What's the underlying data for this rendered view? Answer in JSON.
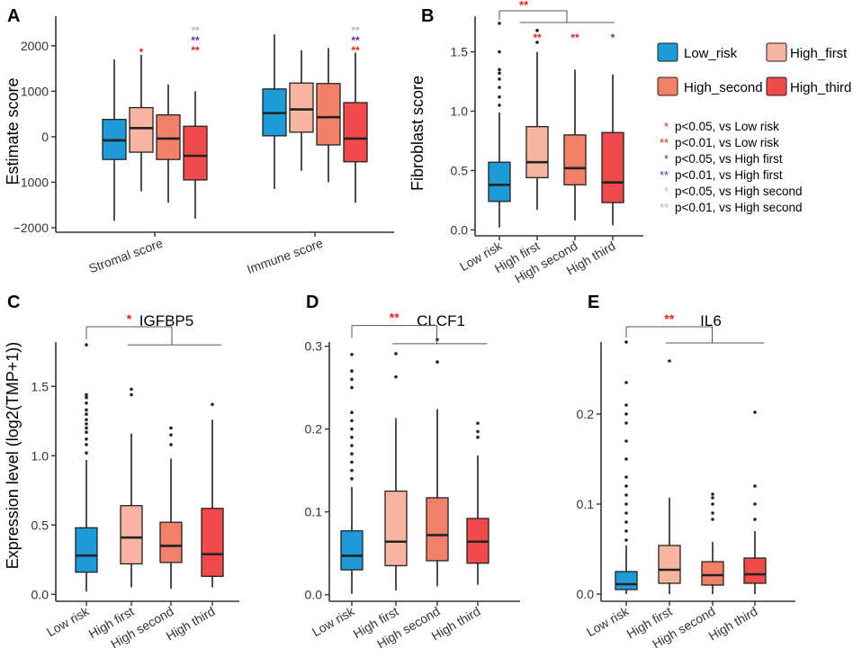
{
  "colors": {
    "low_risk": "#1e9ad6",
    "high_first": "#f7b5a1",
    "high_second": "#f08068",
    "high_third": "#f04a4a",
    "sig_red": "#e8201c",
    "sig_purple": "#6a2a9a",
    "sig_lavender": "#c8a8d8",
    "axis": "#333333"
  },
  "legend": {
    "items": [
      {
        "key": "low_risk",
        "label": "Low_risk"
      },
      {
        "key": "high_first",
        "label": "High_first"
      },
      {
        "key": "high_second",
        "label": "High_second"
      },
      {
        "key": "high_third",
        "label": "High_third"
      }
    ],
    "notes": [
      {
        "marker": "*",
        "color": "sig_red",
        "text": "p<0.05, vs Low risk"
      },
      {
        "marker": "**",
        "color": "sig_red",
        "text": "p<0.01, vs Low risk"
      },
      {
        "marker": "*",
        "color": "sig_purple",
        "text": "p<0.05, vs High first"
      },
      {
        "marker": "**",
        "color": "sig_purple",
        "text": "p<0.01, vs High first"
      },
      {
        "marker": "*",
        "color": "sig_lavender",
        "text": "p<0.05, vs High second"
      },
      {
        "marker": "**",
        "color": "sig_lavender",
        "text": "p<0.01, vs High second"
      }
    ]
  },
  "chart_data": [
    {
      "panel": "A",
      "type": "box",
      "title": "",
      "ylabel": "Estimate score",
      "ylim": [
        -2100,
        2650
      ],
      "yticks": [
        -2000,
        -1000,
        0,
        1000,
        2000
      ],
      "ytick_labels": [
        "−2000",
        "−1000",
        "0",
        "1000",
        "2000"
      ],
      "group_labels": [
        "Stromal score",
        "Immune score"
      ],
      "groups": [
        {
          "name": "Stromal score",
          "boxes": [
            {
              "series": "low_risk",
              "min": -1850,
              "q1": -500,
              "median": -80,
              "q3": 380,
              "max": 1700,
              "outliers": []
            },
            {
              "series": "high_first",
              "min": -1200,
              "q1": -340,
              "median": 190,
              "q3": 640,
              "max": 1800,
              "outliers": []
            },
            {
              "series": "high_second",
              "min": -1450,
              "q1": -500,
              "median": -40,
              "q3": 480,
              "max": 1150,
              "outliers": []
            },
            {
              "series": "high_third",
              "min": -1800,
              "q1": -950,
              "median": -420,
              "q3": 230,
              "max": 1000,
              "outliers": []
            }
          ],
          "sig": [
            {
              "box": 1,
              "rows": [
                {
                  "text": "*",
                  "color": "sig_red"
                }
              ]
            },
            {
              "box": 3,
              "rows": [
                {
                  "text": "**",
                  "color": "sig_lavender"
                },
                {
                  "text": "**",
                  "color": "sig_purple"
                },
                {
                  "text": "**",
                  "color": "sig_red"
                }
              ]
            }
          ]
        },
        {
          "name": "Immune score",
          "boxes": [
            {
              "series": "low_risk",
              "min": -1150,
              "q1": 20,
              "median": 520,
              "q3": 1050,
              "max": 2250,
              "outliers": []
            },
            {
              "series": "high_first",
              "min": -750,
              "q1": 100,
              "median": 600,
              "q3": 1180,
              "max": 1900,
              "outliers": []
            },
            {
              "series": "high_second",
              "min": -1000,
              "q1": -180,
              "median": 430,
              "q3": 1170,
              "max": 1950,
              "outliers": []
            },
            {
              "series": "high_third",
              "min": -1450,
              "q1": -550,
              "median": -40,
              "q3": 750,
              "max": 1850,
              "outliers": []
            }
          ],
          "sig": [
            {
              "box": 3,
              "rows": [
                {
                  "text": "**",
                  "color": "sig_lavender"
                },
                {
                  "text": "**",
                  "color": "sig_purple"
                },
                {
                  "text": "**",
                  "color": "sig_red"
                }
              ]
            }
          ]
        }
      ]
    },
    {
      "panel": "B",
      "type": "box",
      "title": "",
      "ylabel": "Fibroblast score",
      "ylim": [
        -0.05,
        1.8
      ],
      "yticks": [
        0.0,
        0.5,
        1.0,
        1.5
      ],
      "ytick_labels": [
        "0.0",
        "0.5",
        "1.0",
        "1.5"
      ],
      "categories": [
        "Low risk",
        "High first",
        "High second",
        "High third"
      ],
      "boxes": [
        {
          "series": "low_risk",
          "min": 0.02,
          "q1": 0.24,
          "median": 0.38,
          "q3": 0.57,
          "max": 0.99,
          "outliers": [
            1.05,
            1.12,
            1.2,
            1.27,
            1.32,
            1.35,
            1.5,
            1.74
          ]
        },
        {
          "series": "high_first",
          "min": 0.17,
          "q1": 0.44,
          "median": 0.57,
          "q3": 0.87,
          "max": 1.5,
          "outliers": [
            1.58,
            1.68
          ]
        },
        {
          "series": "high_second",
          "min": 0.08,
          "q1": 0.38,
          "median": 0.52,
          "q3": 0.8,
          "max": 1.35,
          "outliers": []
        },
        {
          "series": "high_third",
          "min": 0.04,
          "q1": 0.23,
          "median": 0.4,
          "q3": 0.82,
          "max": 1.31,
          "outliers": []
        }
      ],
      "sig": [
        {
          "box": 1,
          "rows": [
            {
              "text": "**",
              "color": "sig_red"
            }
          ]
        },
        {
          "box": 2,
          "rows": [
            {
              "text": "**",
              "color": "sig_red"
            }
          ]
        },
        {
          "box": 3,
          "rows": [
            {
              "text": "*",
              "color": "sig_purple"
            }
          ]
        }
      ],
      "bracket": {
        "y": 1.89,
        "drop_y": 1.8,
        "right_y": 1.8,
        "from": 0,
        "to": 3,
        "label": "**"
      }
    },
    {
      "panel": "C",
      "type": "box",
      "title": "IGFBP5",
      "ylabel": "Expression level (log2(TMP+1))",
      "ylim": [
        -0.05,
        1.82
      ],
      "yticks": [
        0.0,
        0.5,
        1.0,
        1.5
      ],
      "ytick_labels": [
        "0.0",
        "0.5",
        "1.0",
        "1.5"
      ],
      "categories": [
        "Low risk",
        "High first",
        "High second",
        "High third"
      ],
      "boxes": [
        {
          "series": "low_risk",
          "min": 0.02,
          "q1": 0.16,
          "median": 0.28,
          "q3": 0.48,
          "max": 0.97,
          "outliers": [
            1.02,
            1.08,
            1.12,
            1.17,
            1.2,
            1.23,
            1.26,
            1.3,
            1.33,
            1.38,
            1.42,
            1.44,
            1.8
          ]
        },
        {
          "series": "high_first",
          "min": 0.05,
          "q1": 0.22,
          "median": 0.41,
          "q3": 0.64,
          "max": 1.16,
          "outliers": [
            1.44,
            1.48
          ]
        },
        {
          "series": "high_second",
          "min": 0.04,
          "q1": 0.23,
          "median": 0.35,
          "q3": 0.52,
          "max": 0.98,
          "outliers": [
            1.08,
            1.15,
            1.2
          ]
        },
        {
          "series": "high_third",
          "min": 0.05,
          "q1": 0.13,
          "median": 0.29,
          "q3": 0.62,
          "max": 1.26,
          "outliers": [
            1.37
          ]
        }
      ],
      "sig": [],
      "bracket": {
        "y": 1.93,
        "drop_y": 1.84,
        "right_y": 1.8,
        "from": 0,
        "to": 3,
        "label": "*"
      }
    },
    {
      "panel": "D",
      "type": "box",
      "title": "CLCF1",
      "ylabel": "",
      "ylim": [
        -0.008,
        0.305
      ],
      "yticks": [
        0.0,
        0.1,
        0.2,
        0.3
      ],
      "ytick_labels": [
        "0.0",
        "0.1",
        "0.2",
        "0.3"
      ],
      "categories": [
        "Low risk",
        "High first",
        "High second",
        "High third"
      ],
      "boxes": [
        {
          "series": "low_risk",
          "min": 0.001,
          "q1": 0.03,
          "median": 0.047,
          "q3": 0.077,
          "max": 0.13,
          "outliers": [
            0.14,
            0.15,
            0.16,
            0.17,
            0.18,
            0.19,
            0.2,
            0.21,
            0.22,
            0.25,
            0.26,
            0.27,
            0.29
          ]
        },
        {
          "series": "high_first",
          "min": 0.005,
          "q1": 0.035,
          "median": 0.064,
          "q3": 0.125,
          "max": 0.213,
          "outliers": [
            0.263,
            0.291
          ]
        },
        {
          "series": "high_second",
          "min": 0.01,
          "q1": 0.041,
          "median": 0.072,
          "q3": 0.117,
          "max": 0.224,
          "outliers": [
            0.281,
            0.308
          ]
        },
        {
          "series": "high_third",
          "min": 0.012,
          "q1": 0.038,
          "median": 0.064,
          "q3": 0.092,
          "max": 0.168,
          "outliers": [
            0.19,
            0.197,
            0.207
          ]
        }
      ],
      "sig": [],
      "bracket": {
        "y": 0.325,
        "drop_y": 0.31,
        "right_y": 0.303,
        "from": 0,
        "to": 3,
        "label": "**"
      }
    },
    {
      "panel": "E",
      "type": "box",
      "title": "IL6",
      "ylabel": "",
      "ylim": [
        -0.008,
        0.28
      ],
      "yticks": [
        0.0,
        0.1,
        0.2
      ],
      "ytick_labels": [
        "0.0",
        "0.1",
        "0.2"
      ],
      "categories": [
        "Low risk",
        "High first",
        "High second",
        "High third"
      ],
      "boxes": [
        {
          "series": "low_risk",
          "min": 0.0,
          "q1": 0.005,
          "median": 0.011,
          "q3": 0.025,
          "max": 0.054,
          "outliers": [
            0.06,
            0.07,
            0.08,
            0.09,
            0.1,
            0.11,
            0.12,
            0.13,
            0.15,
            0.17,
            0.19,
            0.2,
            0.21,
            0.235,
            0.28
          ]
        },
        {
          "series": "high_first",
          "min": 0.0,
          "q1": 0.012,
          "median": 0.027,
          "q3": 0.054,
          "max": 0.107,
          "outliers": [
            0.259
          ]
        },
        {
          "series": "high_second",
          "min": 0.0,
          "q1": 0.01,
          "median": 0.021,
          "q3": 0.036,
          "max": 0.058,
          "outliers": [
            0.083,
            0.09,
            0.1,
            0.107,
            0.111
          ]
        },
        {
          "series": "high_third",
          "min": 0.0,
          "q1": 0.012,
          "median": 0.022,
          "q3": 0.04,
          "max": 0.07,
          "outliers": [
            0.083,
            0.1,
            0.12,
            0.202
          ]
        }
      ],
      "sig": [],
      "bracket": {
        "y": 0.297,
        "drop_y": 0.285,
        "right_y": 0.279,
        "from": 0,
        "to": 3,
        "label": "**"
      }
    }
  ]
}
